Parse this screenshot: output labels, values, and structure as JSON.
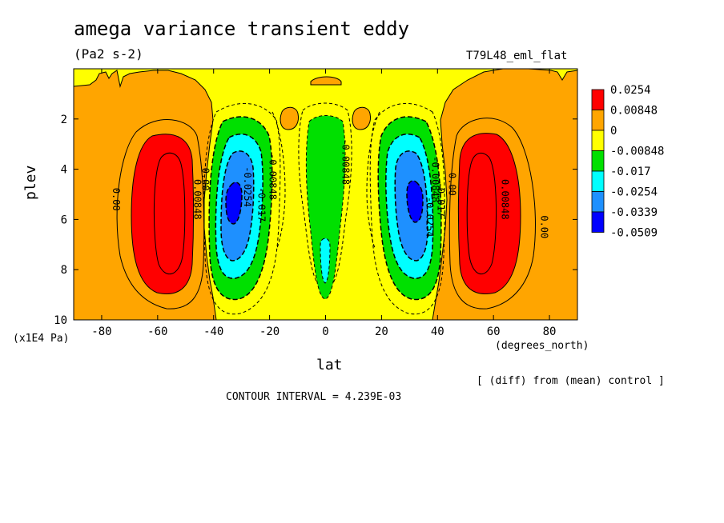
{
  "header": {
    "title": "amega variance transient eddy",
    "units": "(Pa2 s-2)",
    "run": "T79L48_eml_flat",
    "y_scale": "(x1E4 Pa)",
    "x_units": "(degrees_north)",
    "note": "[ (diff) from (mean) control ]",
    "contour_interval": "CONTOUR INTERVAL = 4.239E-03"
  },
  "chart_data": {
    "type": "contour",
    "xlabel": "lat",
    "ylabel": "plev",
    "xlim": [
      -90,
      90
    ],
    "ylim": [
      0,
      10
    ],
    "y_inverted": true,
    "x_ticks": [
      "-80",
      "-60",
      "-40",
      "-20",
      "0",
      "20",
      "40",
      "60",
      "80"
    ],
    "x_tick_values": [
      -80,
      -60,
      -40,
      -20,
      0,
      20,
      40,
      60,
      80
    ],
    "y_ticks": [
      "2",
      "4",
      "6",
      "8",
      "10"
    ],
    "y_tick_values": [
      2,
      4,
      6,
      8,
      10
    ],
    "legend": {
      "placement": "right",
      "labels": [
        "0.0254",
        "0.00848",
        "0",
        "-0.00848",
        "-0.017",
        "-0.0254",
        "-0.0339",
        "-0.0509"
      ],
      "colors": [
        "#ff0000",
        "#ffa500",
        "#ffff00",
        "#00e000",
        "#00ffff",
        "#1e90ff",
        "#0000ff"
      ]
    },
    "contour_labels": [
      {
        "text": "0.00",
        "lat": -76,
        "plev": 5.2
      },
      {
        "text": "0.00848",
        "lat": -47,
        "plev": 5.2
      },
      {
        "text": "0.00",
        "lat": -44,
        "plev": 4.4
      },
      {
        "text": "-0.0254",
        "lat": -29,
        "plev": 4.7
      },
      {
        "text": "-0.017",
        "lat": -24,
        "plev": 5.4
      },
      {
        "text": "-0.00848",
        "lat": -20,
        "plev": 4.3
      },
      {
        "text": "-0.00848",
        "lat": 6,
        "plev": 3.7
      },
      {
        "text": "-0.00848",
        "lat": 38,
        "plev": 4.4
      },
      {
        "text": "-0.017",
        "lat": 40,
        "plev": 5.2
      },
      {
        "text": "-0.0254",
        "lat": 36,
        "plev": 5.9
      },
      {
        "text": "0.00",
        "lat": 44,
        "plev": 4.6
      },
      {
        "text": "0.00848",
        "lat": 63,
        "plev": 5.2
      },
      {
        "text": "0.00",
        "lat": 77,
        "plev": 6.3
      }
    ],
    "features": [
      {
        "name": "southern-positive-max",
        "lat": -55,
        "plev": 5.5,
        "level": "0.0254"
      },
      {
        "name": "southern-negative-min",
        "lat": -34,
        "plev": 5.2,
        "level": "-0.0339"
      },
      {
        "name": "equatorial-negative",
        "lat": 0,
        "plev": 5.5,
        "level": "-0.017"
      },
      {
        "name": "northern-negative-min",
        "lat": 33,
        "plev": 5.3,
        "level": "-0.0339"
      },
      {
        "name": "northern-positive-max",
        "lat": 55,
        "plev": 5.5,
        "level": "0.0254"
      }
    ]
  }
}
